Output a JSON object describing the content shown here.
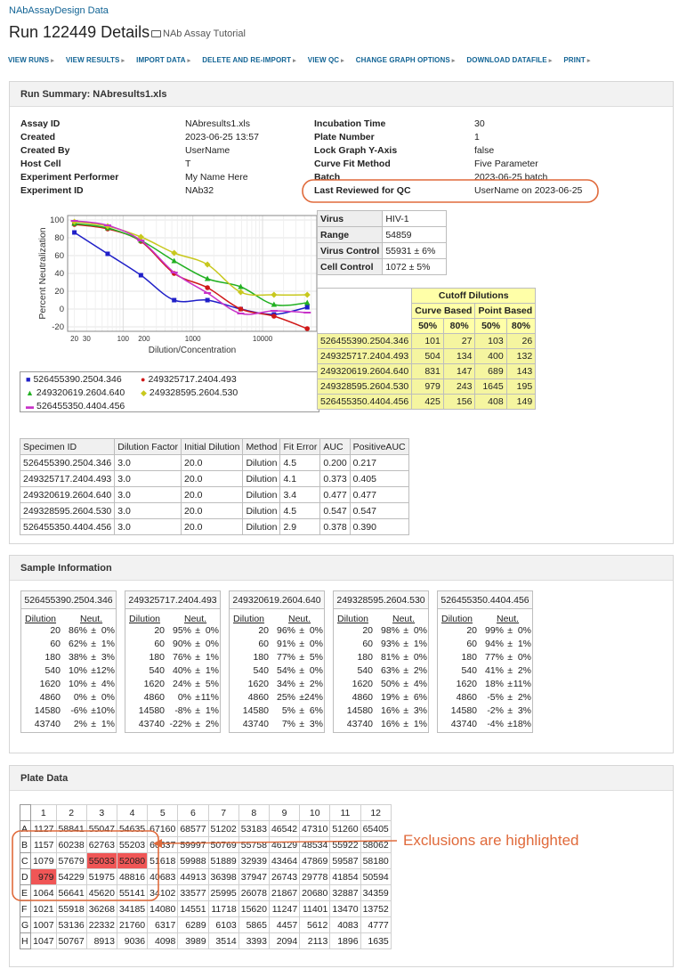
{
  "breadcrumb": "NAbAssayDesign Data",
  "title": "Run 122449 Details",
  "folder_link": "NAb Assay Tutorial",
  "menu": [
    "VIEW RUNS",
    "VIEW RESULTS",
    "IMPORT DATA",
    "DELETE AND RE-IMPORT",
    "VIEW QC",
    "CHANGE GRAPH OPTIONS",
    "DOWNLOAD DATAFILE",
    "PRINT"
  ],
  "run_summary": {
    "header": "Run Summary: NAbresults1.xls",
    "left_props": [
      {
        "k": "Assay ID",
        "v": "NAbresults1.xls"
      },
      {
        "k": "Created",
        "v": "2023-06-25 13:57"
      },
      {
        "k": "Created By",
        "v": "UserName"
      },
      {
        "k": "Host Cell",
        "v": "T"
      },
      {
        "k": "Experiment Performer",
        "v": "My Name Here"
      },
      {
        "k": "Experiment ID",
        "v": "NAb32"
      }
    ],
    "right_props": [
      {
        "k": "Incubation Time",
        "v": "30"
      },
      {
        "k": "Plate Number",
        "v": "1"
      },
      {
        "k": "Lock Graph Y-Axis",
        "v": "false"
      },
      {
        "k": "Curve Fit Method",
        "v": "Five Parameter"
      },
      {
        "k": "Batch",
        "v": "2023-06-25 batch"
      },
      {
        "k": "Last Reviewed for QC",
        "v": "UserName on 2023-06-25"
      }
    ],
    "virus_table": [
      {
        "k": "Virus",
        "v": "HIV-1"
      },
      {
        "k": "Range",
        "v": "54859"
      },
      {
        "k": "Virus Control",
        "v": "55931 ± 6%"
      },
      {
        "k": "Cell Control",
        "v": "1072 ± 5%"
      }
    ],
    "cutoff": {
      "title": "Cutoff Dilutions",
      "group_headers": [
        "Curve Based",
        "Point Based"
      ],
      "sub_headers": [
        "50%",
        "80%",
        "50%",
        "80%"
      ],
      "rows": [
        {
          "id": "526455390.2504.346",
          "vals": [
            "101",
            "27",
            "103",
            "26"
          ]
        },
        {
          "id": "249325717.2404.493",
          "vals": [
            "504",
            "134",
            "400",
            "132"
          ]
        },
        {
          "id": "249320619.2604.640",
          "vals": [
            "831",
            "147",
            "689",
            "143"
          ]
        },
        {
          "id": "249328595.2604.530",
          "vals": [
            "979",
            "243",
            "1645",
            "195"
          ]
        },
        {
          "id": "526455350.4404.456",
          "vals": [
            "425",
            "156",
            "408",
            "149"
          ]
        }
      ]
    },
    "specimen_table": {
      "headers": [
        "Specimen ID",
        "Dilution Factor",
        "Initial Dilution",
        "Method",
        "Fit Error",
        "AUC",
        "PositiveAUC"
      ],
      "rows": [
        [
          "526455390.2504.346",
          "3.0",
          "20.0",
          "Dilution",
          "4.5",
          "0.200",
          "0.217"
        ],
        [
          "249325717.2404.493",
          "3.0",
          "20.0",
          "Dilution",
          "4.1",
          "0.373",
          "0.405"
        ],
        [
          "249320619.2604.640",
          "3.0",
          "20.0",
          "Dilution",
          "3.4",
          "0.477",
          "0.477"
        ],
        [
          "249328595.2604.530",
          "3.0",
          "20.0",
          "Dilution",
          "4.5",
          "0.547",
          "0.547"
        ],
        [
          "526455350.4404.456",
          "3.0",
          "20.0",
          "Dilution",
          "2.9",
          "0.378",
          "0.390"
        ]
      ]
    }
  },
  "chart_data": {
    "type": "scatter",
    "title": "",
    "xlabel": "Dilution/Concentration",
    "ylabel": "Percent Neutralization",
    "x_scale": "log",
    "x_ticks": [
      "20",
      "30",
      "100",
      "200",
      "1000",
      "10000"
    ],
    "y_ticks": [
      "100",
      "80",
      "60",
      "40",
      "20",
      "0",
      "-20"
    ],
    "ylim": [
      -25,
      105
    ],
    "x": [
      20,
      60,
      180,
      540,
      1620,
      4860,
      14580,
      43740
    ],
    "series": [
      {
        "name": "526455390.2504.346",
        "color": "#1f1fc8",
        "marker": "square",
        "values": [
          86,
          62,
          38,
          10,
          10,
          0,
          -6,
          2
        ]
      },
      {
        "name": "249325717.2404.493",
        "color": "#d01818",
        "marker": "circle",
        "values": [
          95,
          90,
          76,
          40,
          24,
          0,
          -8,
          -22
        ]
      },
      {
        "name": "249320619.2604.640",
        "color": "#22b022",
        "marker": "triangle",
        "values": [
          96,
          91,
          77,
          54,
          34,
          25,
          5,
          7
        ]
      },
      {
        "name": "249328595.2604.530",
        "color": "#c8c81e",
        "marker": "diamond",
        "values": [
          98,
          93,
          81,
          63,
          50,
          19,
          16,
          16
        ]
      },
      {
        "name": "526455350.4404.456",
        "color": "#c832c8",
        "marker": "dash",
        "values": [
          99,
          94,
          77,
          41,
          18,
          -5,
          -2,
          -4
        ]
      }
    ]
  },
  "sample_info": {
    "header": "Sample Information",
    "col_labels": [
      "Dilution",
      "Neut."
    ],
    "samples": [
      {
        "id": "526455390.2504.346",
        "rows": [
          [
            "20",
            "86%",
            "0%"
          ],
          [
            "60",
            "62%",
            "1%"
          ],
          [
            "180",
            "38%",
            "3%"
          ],
          [
            "540",
            "10%",
            "12%"
          ],
          [
            "1620",
            "10%",
            "4%"
          ],
          [
            "4860",
            "0%",
            "0%"
          ],
          [
            "14580",
            "-6%",
            "10%"
          ],
          [
            "43740",
            "2%",
            "1%"
          ]
        ]
      },
      {
        "id": "249325717.2404.493",
        "rows": [
          [
            "20",
            "95%",
            "0%"
          ],
          [
            "60",
            "90%",
            "0%"
          ],
          [
            "180",
            "76%",
            "1%"
          ],
          [
            "540",
            "40%",
            "1%"
          ],
          [
            "1620",
            "24%",
            "5%"
          ],
          [
            "4860",
            "0%",
            "11%"
          ],
          [
            "14580",
            "-8%",
            "1%"
          ],
          [
            "43740",
            "-22%",
            "2%"
          ]
        ]
      },
      {
        "id": "249320619.2604.640",
        "rows": [
          [
            "20",
            "96%",
            "0%"
          ],
          [
            "60",
            "91%",
            "0%"
          ],
          [
            "180",
            "77%",
            "5%"
          ],
          [
            "540",
            "54%",
            "0%"
          ],
          [
            "1620",
            "34%",
            "2%"
          ],
          [
            "4860",
            "25%",
            "24%"
          ],
          [
            "14580",
            "5%",
            "6%"
          ],
          [
            "43740",
            "7%",
            "3%"
          ]
        ]
      },
      {
        "id": "249328595.2604.530",
        "rows": [
          [
            "20",
            "98%",
            "0%"
          ],
          [
            "60",
            "93%",
            "1%"
          ],
          [
            "180",
            "81%",
            "0%"
          ],
          [
            "540",
            "63%",
            "2%"
          ],
          [
            "1620",
            "50%",
            "4%"
          ],
          [
            "4860",
            "19%",
            "6%"
          ],
          [
            "14580",
            "16%",
            "3%"
          ],
          [
            "43740",
            "16%",
            "1%"
          ]
        ]
      },
      {
        "id": "526455350.4404.456",
        "rows": [
          [
            "20",
            "99%",
            "0%"
          ],
          [
            "60",
            "94%",
            "1%"
          ],
          [
            "180",
            "77%",
            "0%"
          ],
          [
            "540",
            "41%",
            "2%"
          ],
          [
            "1620",
            "18%",
            "11%"
          ],
          [
            "4860",
            "-5%",
            "2%"
          ],
          [
            "14580",
            "-2%",
            "3%"
          ],
          [
            "43740",
            "-4%",
            "18%"
          ]
        ]
      }
    ]
  },
  "plate": {
    "header": "Plate Data",
    "cols": [
      "1",
      "2",
      "3",
      "4",
      "5",
      "6",
      "7",
      "8",
      "9",
      "10",
      "11",
      "12"
    ],
    "rows": [
      {
        "label": "A",
        "vals": [
          "1127",
          "58841",
          "55047",
          "54635",
          "67160",
          "68577",
          "51202",
          "53183",
          "46542",
          "47310",
          "51260",
          "65405"
        ]
      },
      {
        "label": "B",
        "vals": [
          "1157",
          "60238",
          "62763",
          "55203",
          "60637",
          "59997",
          "50769",
          "55758",
          "46129",
          "48534",
          "55922",
          "58062"
        ]
      },
      {
        "label": "C",
        "vals": [
          "1079",
          "57679",
          "55033",
          "52080",
          "51618",
          "59988",
          "51889",
          "32939",
          "43464",
          "47869",
          "59587",
          "58180"
        ]
      },
      {
        "label": "D",
        "vals": [
          "979",
          "54229",
          "51975",
          "48816",
          "40683",
          "44913",
          "36398",
          "37947",
          "26743",
          "29778",
          "41854",
          "50594"
        ]
      },
      {
        "label": "E",
        "vals": [
          "1064",
          "56641",
          "45620",
          "55141",
          "34102",
          "33577",
          "25995",
          "26078",
          "21867",
          "20680",
          "32887",
          "34359"
        ]
      },
      {
        "label": "F",
        "vals": [
          "1021",
          "55918",
          "36268",
          "34185",
          "14080",
          "14551",
          "11718",
          "15620",
          "11247",
          "11401",
          "13470",
          "13752"
        ]
      },
      {
        "label": "G",
        "vals": [
          "1007",
          "53136",
          "22332",
          "21760",
          "6317",
          "6289",
          "6103",
          "5865",
          "4457",
          "5612",
          "4083",
          "4777"
        ]
      },
      {
        "label": "H",
        "vals": [
          "1047",
          "50767",
          "8913",
          "9036",
          "4098",
          "3989",
          "3514",
          "3393",
          "2094",
          "2113",
          "1896",
          "1635"
        ]
      }
    ],
    "excluded": [
      "C3",
      "C4",
      "D1"
    ]
  },
  "annotation": "Exclusions are highlighted",
  "annotation_color": "#e06a3b"
}
